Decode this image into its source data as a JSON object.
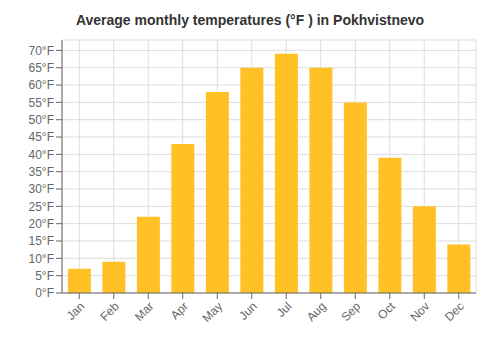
{
  "chart_data": {
    "type": "bar",
    "title": "Average monthly temperatures (°F ) in Pokhvistnevo",
    "categories": [
      "Jan",
      "Feb",
      "Mar",
      "Apr",
      "May",
      "Jun",
      "Jul",
      "Aug",
      "Sep",
      "Oct",
      "Nov",
      "Dec"
    ],
    "values": [
      7,
      9,
      22,
      43,
      58,
      65,
      69,
      65,
      55,
      39,
      25,
      14
    ],
    "color": "#FFC125",
    "ylim": [
      0,
      73
    ],
    "yticks": [
      {
        "value": 0,
        "label": "0°F"
      },
      {
        "value": 5,
        "label": "5°F"
      },
      {
        "value": 10,
        "label": "10°F"
      },
      {
        "value": 15,
        "label": "15°F"
      },
      {
        "value": 20,
        "label": "20°F"
      },
      {
        "value": 25,
        "label": "25°F"
      },
      {
        "value": 30,
        "label": "30°F"
      },
      {
        "value": 35,
        "label": "35°F"
      },
      {
        "value": 40,
        "label": "40°F"
      },
      {
        "value": 45,
        "label": "45°F"
      },
      {
        "value": 50,
        "label": "50°F"
      },
      {
        "value": 55,
        "label": "55°F"
      },
      {
        "value": 60,
        "label": "60°F"
      },
      {
        "value": 65,
        "label": "65°F"
      },
      {
        "value": 70,
        "label": "70°F"
      }
    ],
    "grid": true
  }
}
